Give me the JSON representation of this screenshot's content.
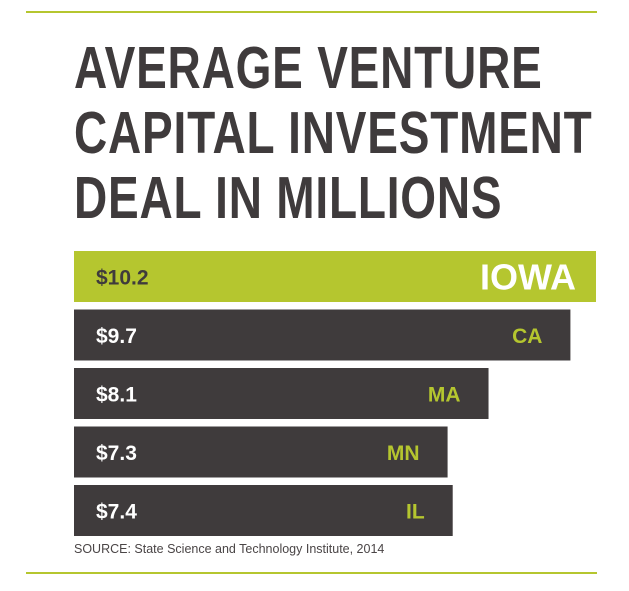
{
  "title_lines": [
    "AVERAGE VENTURE",
    "CAPITAL INVESTMENT",
    "DEAL IN MILLIONS"
  ],
  "colors": {
    "accent": "#b5c62f",
    "bar": "#3f3b3c",
    "rule": "#b5c62f"
  },
  "chart_data": {
    "type": "bar",
    "orientation": "horizontal",
    "title": "AVERAGE VENTURE CAPITAL INVESTMENT DEAL IN MILLIONS",
    "categories": [
      "IOWA",
      "CA",
      "MA",
      "MN",
      "IL"
    ],
    "values": [
      10.2,
      9.7,
      8.1,
      7.3,
      7.4
    ],
    "value_labels": [
      "$10.2",
      "$9.7",
      "$8.1",
      "$7.3",
      "$7.4"
    ],
    "highlight": "IOWA"
  },
  "source": "SOURCE: State Science and Technology Institute, 2014"
}
